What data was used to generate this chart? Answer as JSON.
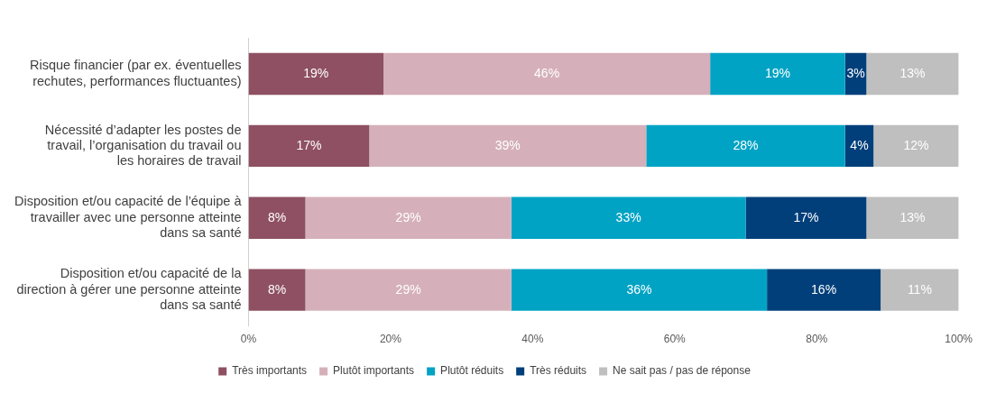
{
  "chart_data": {
    "type": "bar",
    "orientation": "horizontal",
    "stacked": true,
    "data_labels": true,
    "legend": "bottom",
    "grid": false,
    "categories": [
      "Risque financier (par ex. éventuelles rechutes, performances fluctuantes)",
      "Nécessité d’adapter les postes de travail, l’organisation du travail ou les horaires de travail",
      "Disposition et/ou capacité de l’équipe à travailler avec une personne atteinte dans sa santé",
      "Disposition et/ou capacité de la direction à gérer une personne atteinte dans sa santé"
    ],
    "xlim": [
      0,
      100
    ],
    "xticks": [
      {
        "value": 0,
        "label": "0%"
      },
      {
        "value": 20,
        "label": "20%"
      },
      {
        "value": 40,
        "label": "40%"
      },
      {
        "value": 60,
        "label": "60%"
      },
      {
        "value": 80,
        "label": "80%"
      },
      {
        "value": 100,
        "label": "100%"
      }
    ],
    "series": [
      {
        "name": "Très importants",
        "color": "#8e5062",
        "values": [
          19,
          17,
          8,
          8
        ],
        "value_labels": [
          "19%",
          "17%",
          "8%",
          "8%"
        ]
      },
      {
        "name": "Plutôt importants",
        "color": "#d5b0ba",
        "values": [
          46,
          39,
          29,
          29
        ],
        "value_labels": [
          "46%",
          "39%",
          "29%",
          "29%"
        ]
      },
      {
        "name": "Plutôt réduits",
        "color": "#00a3c4",
        "values": [
          19,
          28,
          33,
          36
        ],
        "value_labels": [
          "19%",
          "28%",
          "33%",
          "36%"
        ]
      },
      {
        "name": "Très réduits",
        "color": "#003f7a",
        "values": [
          3,
          4,
          17,
          16
        ],
        "value_labels": [
          "3%",
          "4%",
          "17%",
          "16%"
        ]
      },
      {
        "name": "Ne sait pas / pas de réponse",
        "color": "#bfbfbf",
        "values": [
          13,
          12,
          13,
          11
        ],
        "value_labels": [
          "13%",
          "12%",
          "13%",
          "11%"
        ]
      }
    ]
  }
}
